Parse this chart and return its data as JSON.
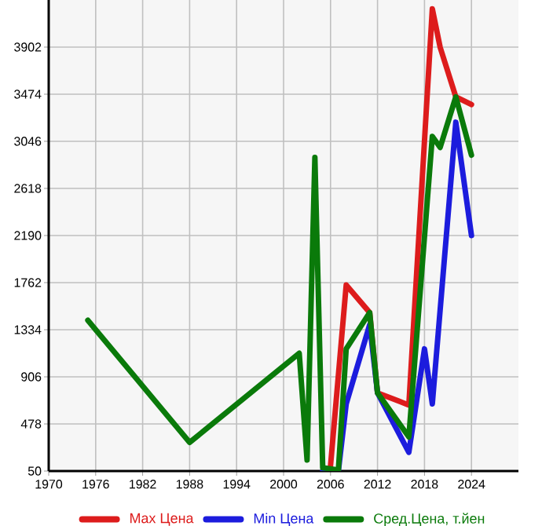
{
  "chart_data": {
    "type": "line",
    "xlim": [
      1970,
      2030
    ],
    "ylim": [
      50,
      4330
    ],
    "xticks": [
      1970,
      1976,
      1982,
      1988,
      1994,
      2000,
      2006,
      2012,
      2018,
      2024
    ],
    "yticks": [
      50,
      478,
      906,
      1334,
      1762,
      2190,
      2618,
      3046,
      3474,
      3902
    ],
    "grid": true,
    "legend": "bottom",
    "marker": "none",
    "line_style": "solid",
    "series": [
      {
        "name": "Max Цена",
        "color": "#dd1c1c",
        "x": [
          2006,
          2008,
          2011,
          2012,
          2016,
          2019,
          2020,
          2022,
          2024
        ],
        "values": [
          100,
          1740,
          1490,
          760,
          650,
          4250,
          3900,
          3450,
          3380
        ]
      },
      {
        "name": "Min Цена",
        "color": "#1c1cdd",
        "x": [
          2005,
          2007,
          2008,
          2011,
          2012,
          2016,
          2018,
          2019,
          2022,
          2024
        ],
        "values": [
          50,
          50,
          660,
          1380,
          760,
          220,
          1160,
          660,
          3220,
          2190
        ]
      },
      {
        "name": "Сред.Цена, т.йен",
        "color": "#0a7a0a",
        "x": [
          1975,
          1988,
          2002,
          2003,
          2004,
          2005,
          2007,
          2008,
          2011,
          2012,
          2016,
          2019,
          2020,
          2022,
          2024
        ],
        "values": [
          1420,
          310,
          1120,
          150,
          2900,
          80,
          60,
          1160,
          1490,
          760,
          360,
          3090,
          2990,
          3450,
          2920
        ]
      }
    ]
  }
}
